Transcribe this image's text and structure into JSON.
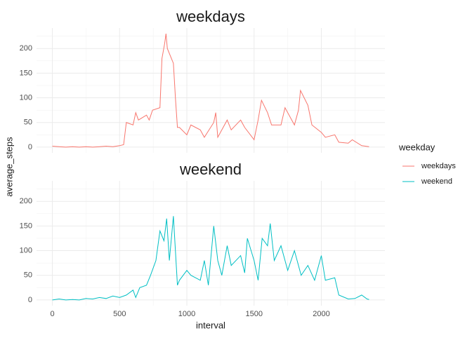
{
  "chart_data": {
    "type": "line",
    "x_label": "interval",
    "y_label": "average_steps",
    "legend_title": "weekday",
    "xlim": [
      -117.75,
      2472.75
    ],
    "xticks": [
      0,
      500,
      1000,
      1500,
      2000
    ],
    "x_minor_ticks": [
      250,
      750,
      1250,
      1750,
      2250
    ],
    "ylim": [
      -11.5,
      241.5
    ],
    "yticks": [
      0,
      50,
      100,
      150,
      200
    ],
    "y_minor_ticks": [
      25,
      75,
      125,
      175,
      225
    ],
    "grid": true,
    "legend_position": "right",
    "series": [
      {
        "name": "weekdays",
        "color": "#F8766D",
        "x": [
          0,
          50,
          100,
          150,
          200,
          250,
          300,
          350,
          400,
          450,
          500,
          530,
          550,
          600,
          620,
          640,
          700,
          720,
          745,
          800,
          815,
          835,
          845,
          855,
          900,
          915,
          930,
          945,
          1000,
          1030,
          1100,
          1130,
          1200,
          1215,
          1230,
          1300,
          1330,
          1400,
          1430,
          1500,
          1530,
          1555,
          1600,
          1630,
          1700,
          1730,
          1800,
          1830,
          1845,
          1900,
          1930,
          2000,
          2030,
          2100,
          2130,
          2200,
          2230,
          2300,
          2355
        ],
        "values": [
          2,
          1,
          0,
          1,
          0,
          1,
          0,
          1,
          2,
          1,
          3,
          5,
          50,
          45,
          70,
          55,
          65,
          55,
          75,
          80,
          180,
          210,
          230,
          200,
          170,
          100,
          40,
          40,
          25,
          45,
          35,
          20,
          50,
          70,
          20,
          55,
          35,
          55,
          40,
          15,
          55,
          95,
          70,
          45,
          45,
          80,
          45,
          75,
          115,
          85,
          45,
          30,
          20,
          25,
          10,
          8,
          15,
          3,
          1
        ]
      },
      {
        "name": "weekend",
        "color": "#00BFC4",
        "x": [
          0,
          50,
          100,
          150,
          200,
          250,
          300,
          350,
          400,
          450,
          500,
          550,
          600,
          620,
          650,
          700,
          730,
          770,
          800,
          830,
          850,
          870,
          900,
          930,
          945,
          1000,
          1030,
          1100,
          1130,
          1160,
          1200,
          1230,
          1260,
          1300,
          1330,
          1400,
          1430,
          1450,
          1500,
          1530,
          1560,
          1600,
          1620,
          1650,
          1700,
          1750,
          1800,
          1850,
          1900,
          1950,
          2000,
          2030,
          2100,
          2130,
          2200,
          2250,
          2300,
          2340,
          2355
        ],
        "values": [
          0,
          2,
          0,
          1,
          0,
          3,
          2,
          5,
          3,
          8,
          5,
          10,
          20,
          5,
          25,
          30,
          50,
          80,
          140,
          120,
          165,
          80,
          170,
          30,
          40,
          60,
          50,
          40,
          80,
          30,
          150,
          80,
          50,
          110,
          70,
          90,
          55,
          125,
          80,
          40,
          125,
          110,
          155,
          80,
          110,
          60,
          100,
          50,
          70,
          40,
          90,
          40,
          45,
          10,
          2,
          3,
          10,
          2,
          1
        ]
      }
    ]
  }
}
